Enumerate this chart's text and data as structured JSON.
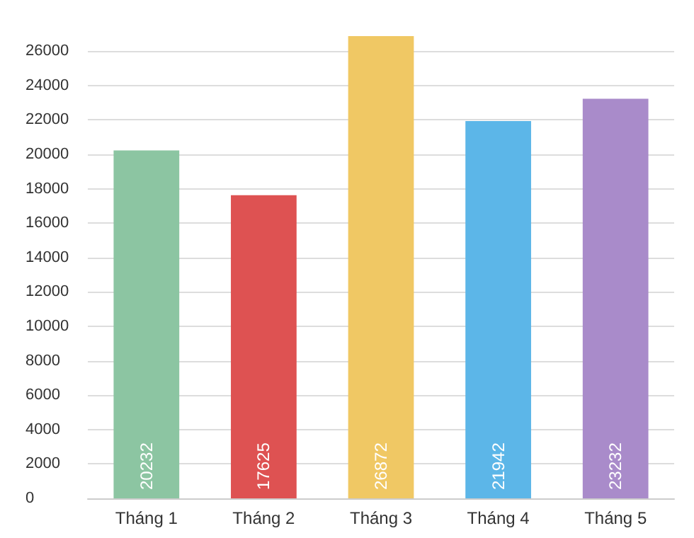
{
  "chart_data": {
    "type": "bar",
    "categories": [
      "Tháng 1",
      "Tháng 2",
      "Tháng 3",
      "Tháng 4",
      "Tháng 5"
    ],
    "values": [
      20232,
      17625,
      26872,
      21942,
      23232
    ],
    "colors": [
      "#8cc5a2",
      "#de5252",
      "#f0c864",
      "#5cb6e8",
      "#a98bca"
    ],
    "ylim": [
      0,
      27000
    ],
    "yticks": [
      0,
      2000,
      4000,
      6000,
      8000,
      10000,
      12000,
      14000,
      16000,
      18000,
      20000,
      22000,
      24000,
      26000
    ],
    "grid": "y",
    "data_labels": true
  }
}
